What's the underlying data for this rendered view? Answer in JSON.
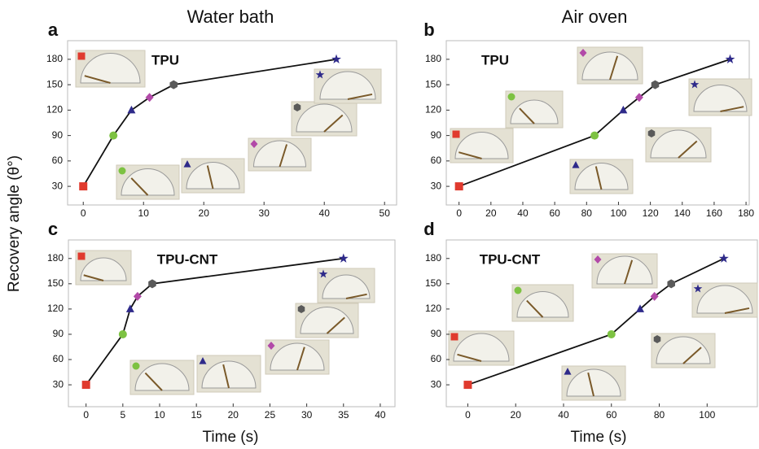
{
  "figure": {
    "ylabel": "Recovery angle (θ°)"
  },
  "chart_data": [
    {
      "type": "line",
      "panel": "a",
      "title": "Water bath",
      "annotation": "TPU",
      "x": [
        0,
        5,
        8,
        11,
        15,
        42
      ],
      "values": [
        30,
        90,
        120,
        135,
        150,
        180
      ],
      "markers": [
        "square",
        "circle",
        "triangle",
        "diamond",
        "hexagon",
        "star"
      ],
      "colors": [
        "#e03a2e",
        "#7dc242",
        "#2e2a8a",
        "#b24aa8",
        "#5a5a5a",
        "#2e2a8a"
      ],
      "line_color": "#111111",
      "xlim": [
        -2.6,
        52
      ],
      "xticks": [
        0,
        10,
        20,
        30,
        40,
        50
      ],
      "ylim": [
        8,
        202
      ],
      "yticks": [
        30,
        60,
        90,
        120,
        150,
        180
      ]
    },
    {
      "type": "line",
      "panel": "b",
      "title": "Air oven",
      "annotation": "TPU",
      "x": [
        0,
        85,
        103,
        113,
        123,
        170
      ],
      "values": [
        30,
        90,
        120,
        135,
        150,
        180
      ],
      "markers": [
        "square",
        "circle",
        "triangle",
        "diamond",
        "hexagon",
        "star"
      ],
      "colors": [
        "#e03a2e",
        "#7dc242",
        "#2e2a8a",
        "#b24aa8",
        "#5a5a5a",
        "#2e2a8a"
      ],
      "line_color": "#111111",
      "xlim": [
        -8,
        182
      ],
      "xticks": [
        0,
        20,
        40,
        60,
        80,
        100,
        120,
        140,
        160,
        180
      ],
      "ylim": [
        8,
        202
      ],
      "yticks": [
        30,
        60,
        90,
        120,
        150,
        180
      ]
    },
    {
      "type": "line",
      "panel": "c",
      "annotation": "TPU-CNT",
      "xlabel": "Time (s)",
      "x": [
        0,
        5,
        6,
        7,
        9,
        35
      ],
      "values": [
        30,
        90,
        120,
        135,
        150,
        180
      ],
      "markers": [
        "square",
        "circle",
        "triangle",
        "diamond",
        "hexagon",
        "star"
      ],
      "colors": [
        "#e03a2e",
        "#7dc242",
        "#2e2a8a",
        "#b24aa8",
        "#5a5a5a",
        "#2e2a8a"
      ],
      "line_color": "#111111",
      "xlim": [
        -2.4,
        42
      ],
      "xticks": [
        0,
        5,
        10,
        15,
        20,
        25,
        30,
        35,
        40
      ],
      "ylim": [
        4,
        202
      ],
      "yticks": [
        30,
        60,
        90,
        120,
        150,
        180
      ]
    },
    {
      "type": "line",
      "panel": "d",
      "annotation": "TPU-CNT",
      "xlabel": "Time (s)",
      "x": [
        0,
        60,
        72,
        78,
        85,
        107
      ],
      "values": [
        30,
        90,
        120,
        135,
        150,
        180
      ],
      "markers": [
        "square",
        "circle",
        "triangle",
        "diamond",
        "hexagon",
        "star"
      ],
      "colors": [
        "#e03a2e",
        "#7dc242",
        "#2e2a8a",
        "#b24aa8",
        "#5a5a5a",
        "#2e2a8a"
      ],
      "line_color": "#111111",
      "xlim": [
        -9,
        121
      ],
      "xticks": [
        0,
        20,
        40,
        60,
        80,
        100
      ],
      "ylim": [
        4,
        202
      ],
      "yticks": [
        30,
        60,
        90,
        120,
        150,
        180
      ]
    }
  ]
}
